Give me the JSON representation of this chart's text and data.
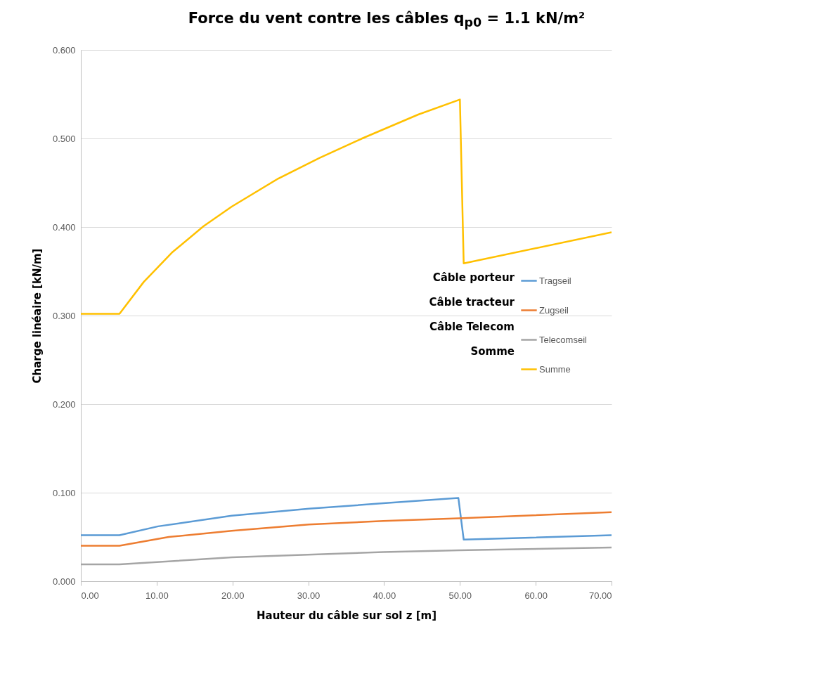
{
  "chart_data": {
    "type": "line",
    "title": "Force du vent contre les câbles q$_{p0}$ = 1.1 kN/m²",
    "xlabel": "Hauteur du câble sur sol z [m]",
    "ylabel": "Charge linéaire [kN/m]",
    "xlim": [
      0,
      70
    ],
    "xticks": [
      {
        "value": 0,
        "label": "0.00"
      },
      {
        "value": 10,
        "label": "10.00"
      },
      {
        "value": 20,
        "label": "20.00"
      },
      {
        "value": 30,
        "label": "30.00"
      },
      {
        "value": 40,
        "label": "40.00"
      },
      {
        "value": 50,
        "label": "50.00"
      },
      {
        "value": 60,
        "label": "60.00"
      },
      {
        "value": 70,
        "label": "70.00"
      }
    ],
    "ylim": [
      0,
      0.6
    ],
    "yticks": [
      {
        "value": 0,
        "label": "0.000"
      },
      {
        "value": 0.1,
        "label": "0.100"
      },
      {
        "value": 0.2,
        "label": "0.200"
      },
      {
        "value": 0.3,
        "label": "0.300"
      },
      {
        "value": 0.4,
        "label": "0.400"
      },
      {
        "value": 0.5,
        "label": "0.500"
      },
      {
        "value": 0.6,
        "label": "0.600"
      }
    ],
    "grid": "y",
    "legend": "right",
    "marker": "none",
    "line_style": "solid",
    "annotations": [
      "Câble porteur",
      "Câble tracteur",
      "Câble Telecom",
      "Somme"
    ],
    "series": [
      {
        "name": "Tragseil",
        "color": "#5b9bd5",
        "x": [
          0,
          5.1,
          10.2,
          19.9,
          30.1,
          39.9,
          49.8,
          50.5,
          70
        ],
        "values": [
          0.052,
          0.052,
          0.062,
          0.074,
          0.082,
          0.088,
          0.094,
          0.047,
          0.052
        ]
      },
      {
        "name": "Zugseil",
        "color": "#ed7d31",
        "x": [
          0,
          5.1,
          11.6,
          19.9,
          30.1,
          39.9,
          49.8,
          70
        ],
        "values": [
          0.04,
          0.04,
          0.05,
          0.057,
          0.064,
          0.068,
          0.071,
          0.078
        ]
      },
      {
        "name": "Telecomseil",
        "color": "#a5a5a5",
        "x": [
          0,
          5.1,
          19.9,
          39.9,
          49.8,
          70
        ],
        "values": [
          0.019,
          0.019,
          0.027,
          0.033,
          0.035,
          0.038
        ]
      },
      {
        "name": "Summe",
        "color": "#ffc000",
        "x": [
          0,
          5.1,
          8.3,
          12,
          16.2,
          19.9,
          25.9,
          31.5,
          37.1,
          44.5,
          50,
          50.5,
          70
        ],
        "values": [
          0.302,
          0.302,
          0.338,
          0.371,
          0.401,
          0.423,
          0.454,
          0.478,
          0.5,
          0.527,
          0.544,
          0.359,
          0.394
        ]
      }
    ]
  }
}
